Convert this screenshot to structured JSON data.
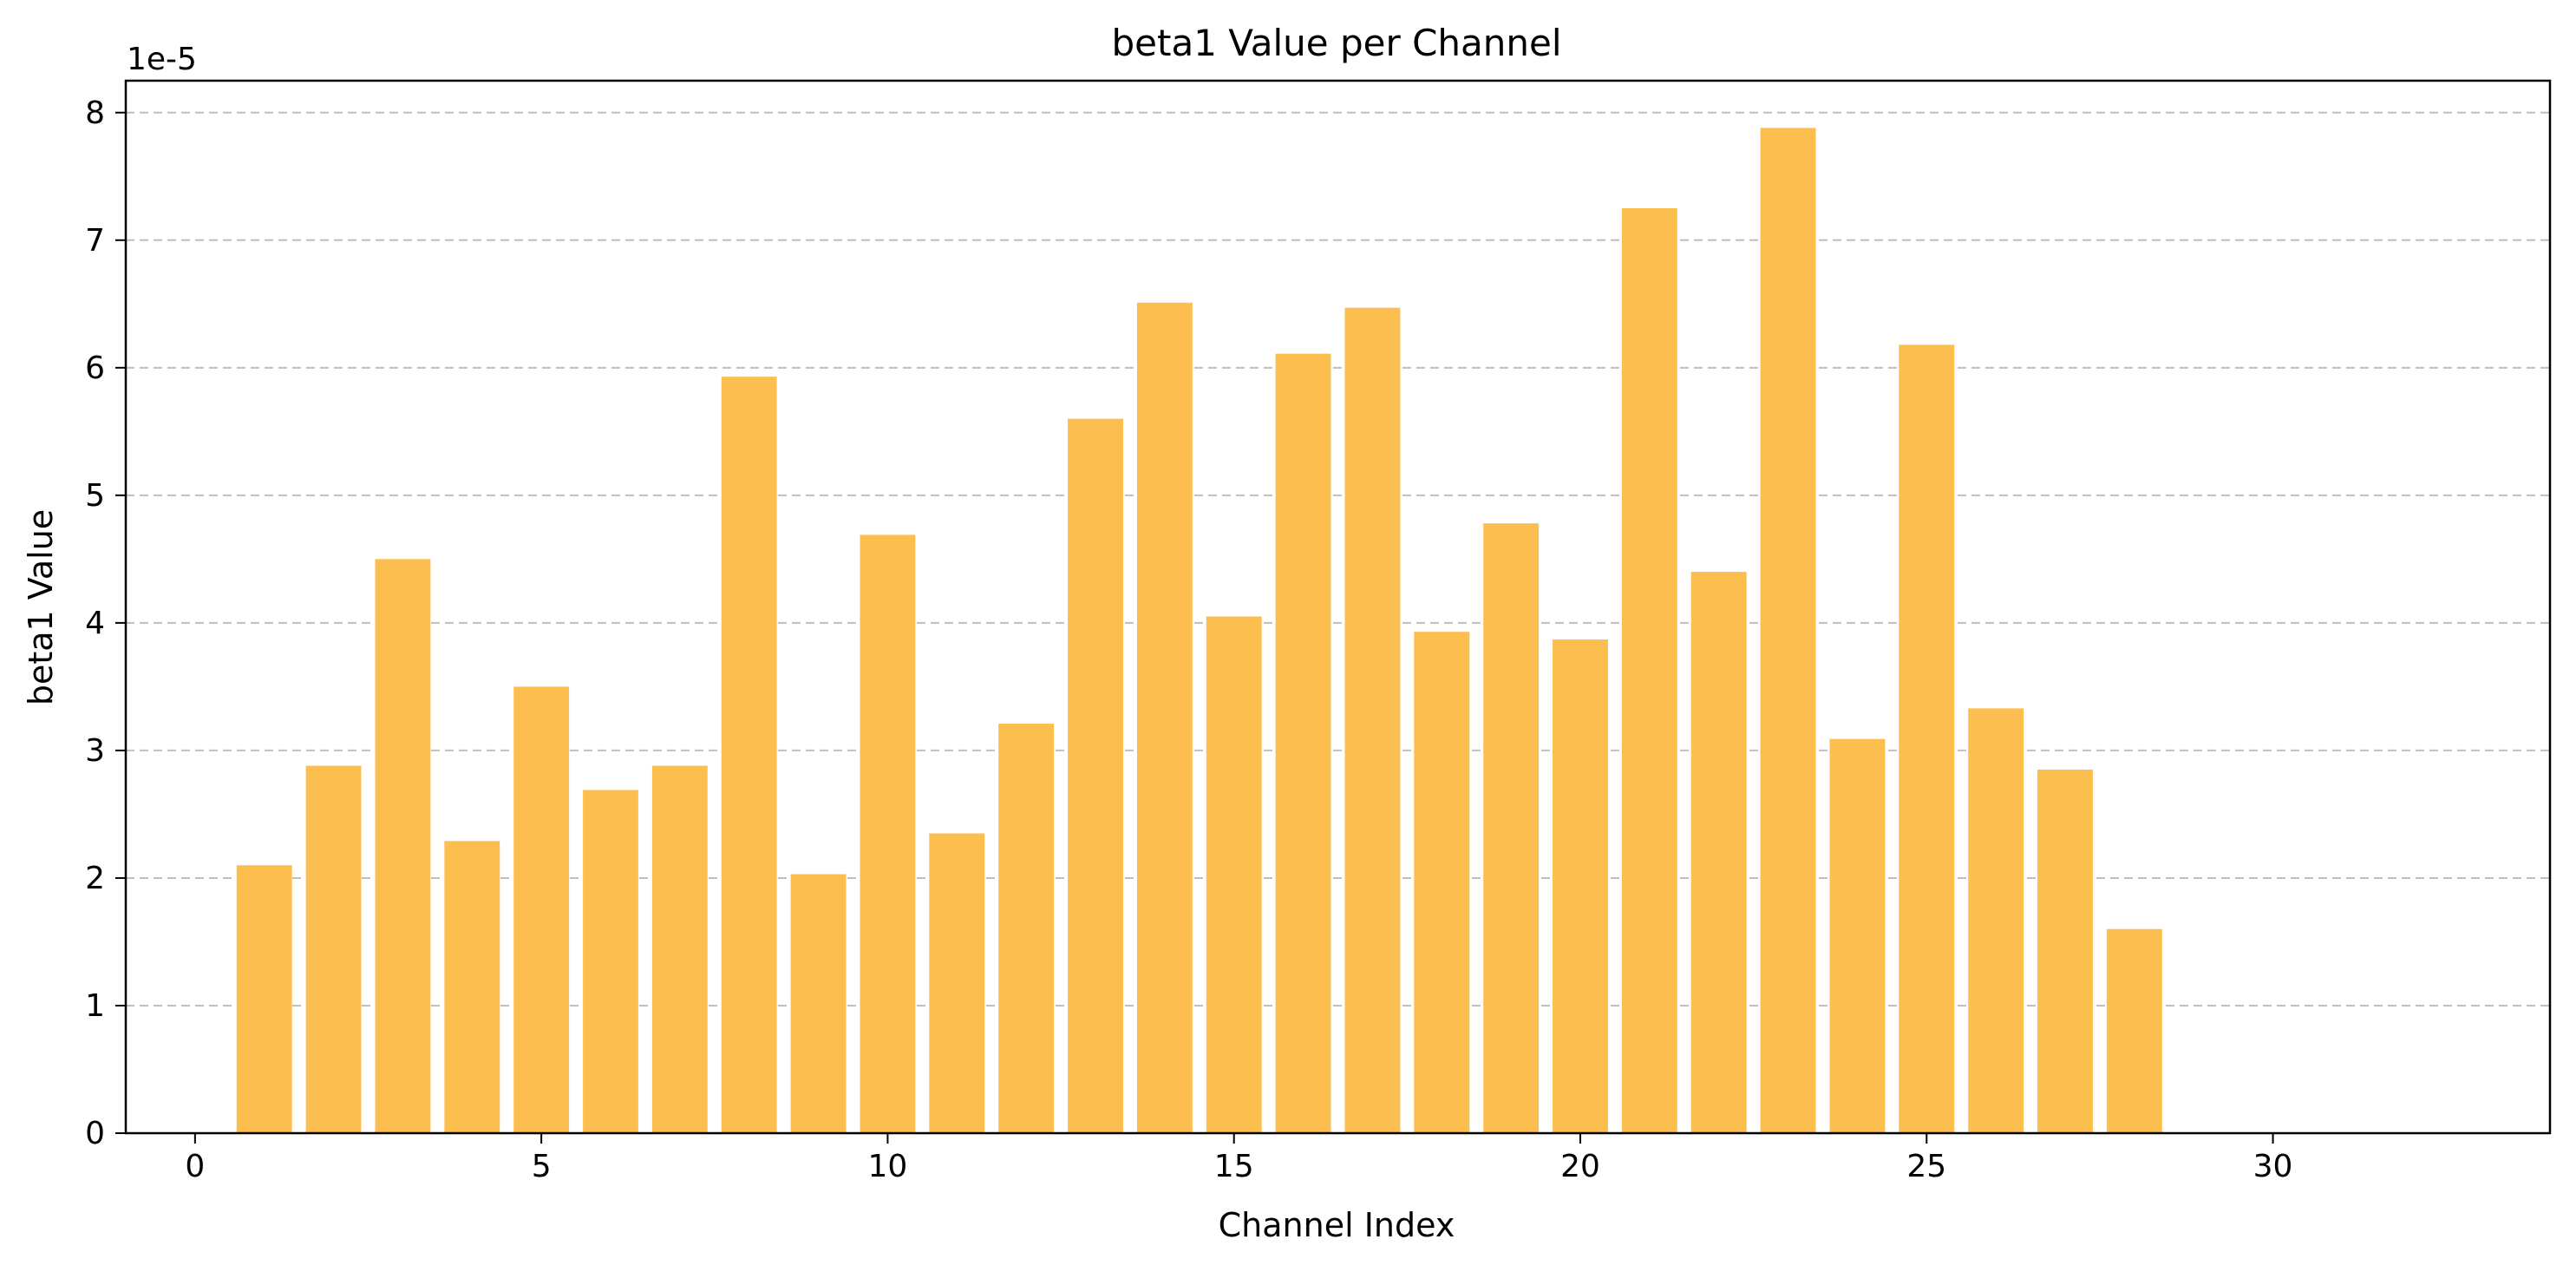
{
  "chart_data": {
    "type": "bar",
    "title": "beta1 Value per Channel",
    "xlabel": "Channel Index",
    "ylabel": "beta1 Value",
    "y_offset_text": "1e-5",
    "xlim": [
      -1,
      34
    ],
    "ylim": [
      0,
      8.25
    ],
    "x_ticks": [
      0,
      5,
      10,
      15,
      20,
      25,
      30
    ],
    "y_ticks": [
      0,
      1,
      2,
      3,
      4,
      5,
      6,
      7,
      8
    ],
    "grid": "y-dashed",
    "bar_color": "#fdbe50",
    "x": [
      1,
      2,
      3,
      4,
      5,
      6,
      7,
      8,
      9,
      10,
      11,
      12,
      13,
      14,
      15,
      16,
      17,
      18,
      19,
      20,
      21,
      22,
      23,
      24,
      25,
      26,
      27,
      28
    ],
    "values": [
      2.1,
      2.88,
      4.5,
      2.29,
      3.5,
      2.69,
      2.88,
      5.93,
      2.03,
      4.69,
      2.35,
      3.21,
      5.6,
      6.51,
      4.05,
      6.11,
      6.47,
      3.93,
      4.78,
      3.87,
      7.25,
      4.4,
      7.88,
      3.09,
      6.18,
      3.33,
      2.85,
      1.6
    ],
    "value_scale": "1e-5"
  }
}
